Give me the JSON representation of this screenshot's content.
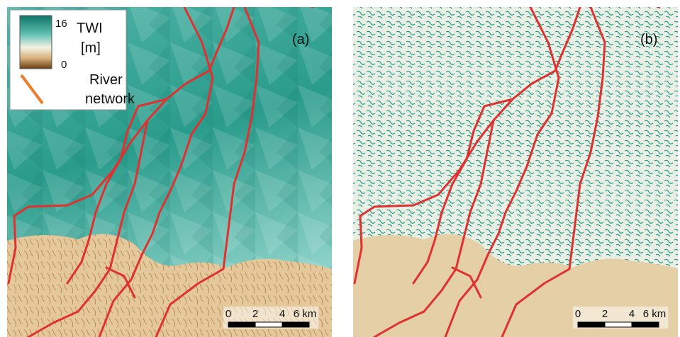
{
  "legend": {
    "max": "16",
    "title": "TWI",
    "unit": "[m]",
    "min": "0",
    "river_line1": "River",
    "river_line2": "network"
  },
  "panels": [
    {
      "label": "(a)"
    },
    {
      "label": "(b)"
    }
  ],
  "scale_bar": {
    "labels": [
      "0",
      "2",
      "4",
      "6 km"
    ]
  }
}
